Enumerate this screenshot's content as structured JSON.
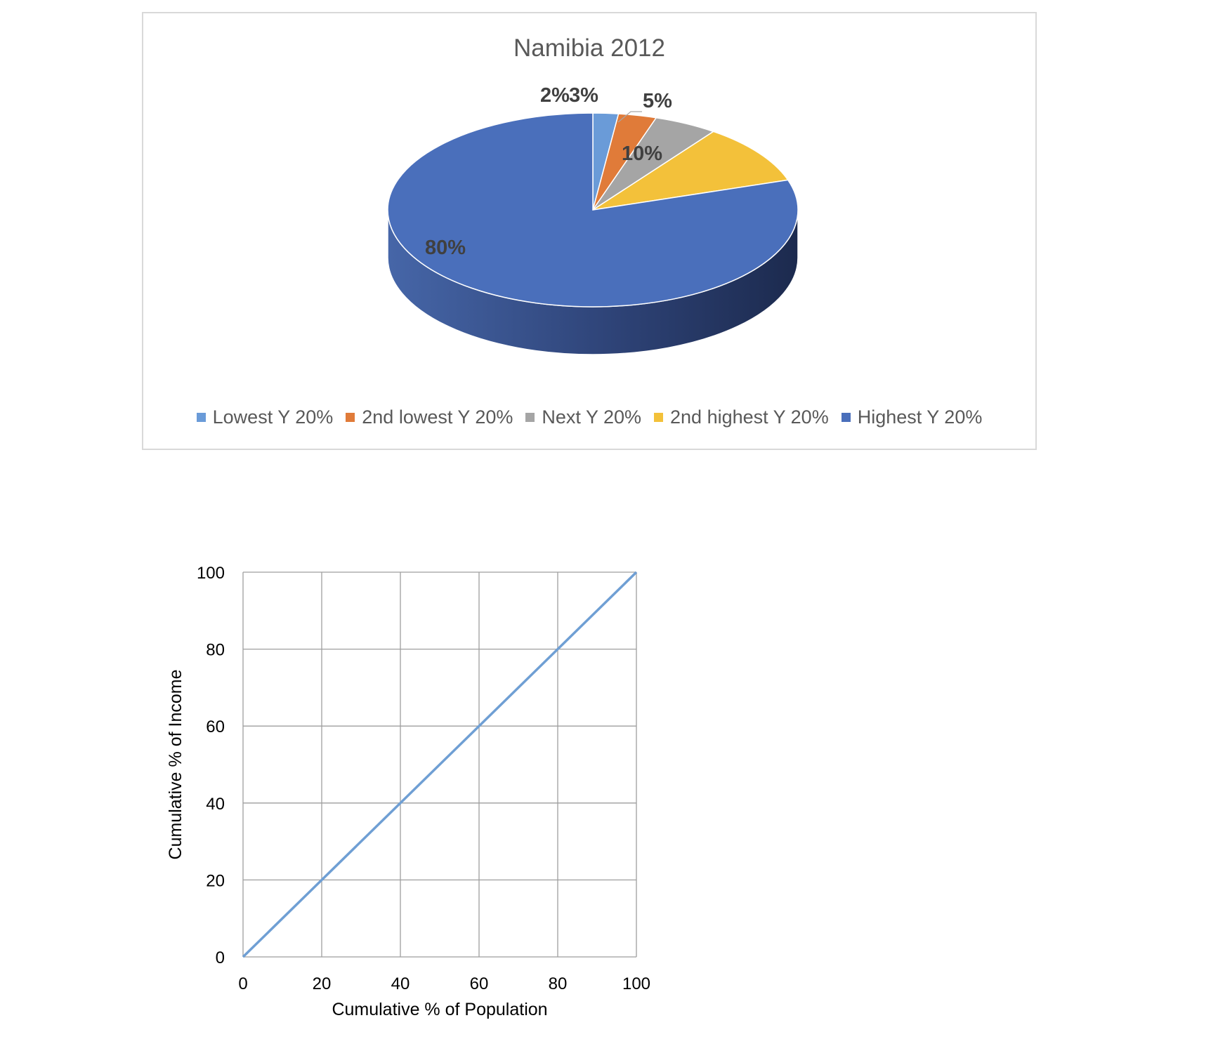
{
  "chart_data": [
    {
      "type": "pie",
      "title": "Namibia 2012",
      "labels": [
        "Lowest Y 20%",
        "2nd lowest Y 20%",
        "Next Y 20%",
        "2nd highest Y 20%",
        "Highest Y 20%"
      ],
      "values": [
        2,
        3,
        5,
        10,
        80
      ],
      "data_labels": [
        "2%",
        "3%",
        "5%",
        "10%",
        "80%"
      ],
      "colors": [
        "#6a9bd8",
        "#e07b39",
        "#a5a5a5",
        "#f3c13a",
        "#4a6fbb"
      ],
      "legend_position": "bottom",
      "style": "3d"
    },
    {
      "type": "line",
      "title": "",
      "xlabel": "Cumulative % of Population",
      "ylabel": "Cumulative % of Income",
      "x": [
        0,
        100
      ],
      "series": [
        {
          "values": [
            0,
            100
          ],
          "color": "#6f9fd4"
        }
      ],
      "xlim": [
        0,
        100
      ],
      "ylim": [
        0,
        100
      ],
      "xticks": [
        0,
        20,
        40,
        60,
        80,
        100
      ],
      "yticks": [
        0,
        20,
        40,
        60,
        80,
        100
      ],
      "grid": true
    }
  ]
}
